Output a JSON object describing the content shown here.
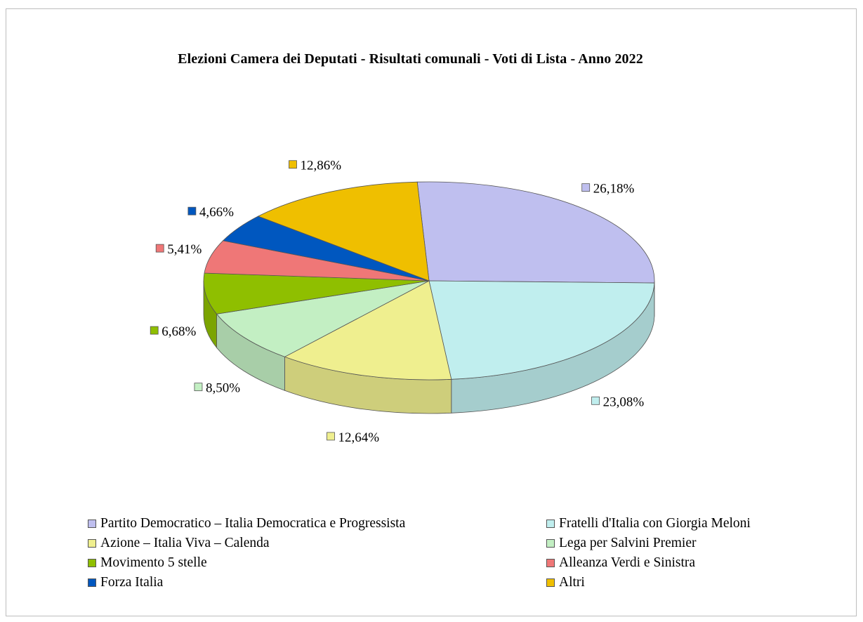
{
  "chart_data": {
    "type": "pie",
    "title": "Elezioni Camera dei Deputati - Risultati comunali - Voti di Lista  - Anno 2022",
    "slices": [
      {
        "name": "Partito Democratico – Italia Democratica e Progressista",
        "value": 26.18,
        "label": "26,18%",
        "color": "#bfbfef"
      },
      {
        "name": "Fratelli d'Italia con Giorgia Meloni",
        "value": 23.08,
        "label": "23,08%",
        "color": "#c0eeee"
      },
      {
        "name": "Azione – Italia Viva – Calenda",
        "value": 12.64,
        "label": "12,64%",
        "color": "#efef8f"
      },
      {
        "name": "Lega per Salvini Premier",
        "value": 8.5,
        "label": "8,50%",
        "color": "#c3efc3"
      },
      {
        "name": "Movimento 5 stelle",
        "value": 6.68,
        "label": "6,68%",
        "color": "#8fbf00"
      },
      {
        "name": "Alleanza Verdi e Sinistra",
        "value": 5.41,
        "label": "5,41%",
        "color": "#ef7777"
      },
      {
        "name": "Forza Italia",
        "value": 4.66,
        "label": "4,66%",
        "color": "#0057bf"
      },
      {
        "name": "Altri",
        "value": 12.86,
        "label": "12,86%",
        "color": "#efbf00"
      }
    ],
    "legend_position": "bottom"
  }
}
